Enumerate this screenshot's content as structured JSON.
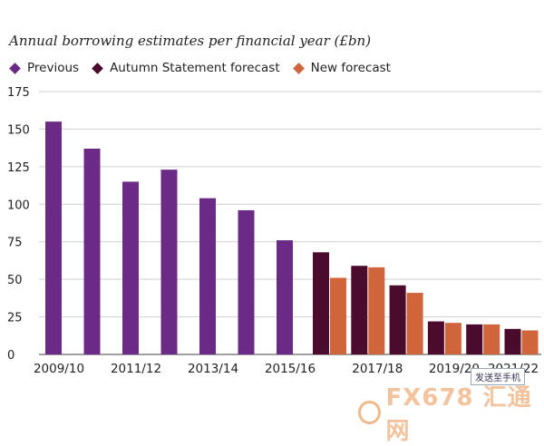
{
  "title": "Annual borrowing estimates per financial year (£bn)",
  "legend": [
    {
      "label": "Previous",
      "color": "#6a2a86"
    },
    {
      "label": "Autumn Statement forecast",
      "color": "#4a0b2c"
    },
    {
      "label": "New forecast",
      "color": "#d0643a"
    }
  ],
  "watermark": {
    "text": "FX678 汇通网",
    "badge": "发送至手机"
  },
  "chart_data": {
    "type": "bar",
    "title": "Annual borrowing estimates per financial year (£bn)",
    "ylim": [
      0,
      175
    ],
    "yticks": [
      0,
      25,
      50,
      75,
      100,
      125,
      150,
      175
    ],
    "grid": true,
    "legend_position": "top-left",
    "categories": [
      "2009/10",
      "2010/11",
      "2011/12",
      "2012/13",
      "2013/14",
      "2014/15",
      "2015/16",
      "2016/17",
      "2017/18",
      "2018/19",
      "2019/20",
      "2020/21",
      "2021/22"
    ],
    "xtick_labels": [
      "2009/10",
      "",
      "2011/12",
      "",
      "2013/14",
      "",
      "2015/16",
      "",
      "2017/18",
      "",
      "2019/20",
      "",
      "2021/22"
    ],
    "series": [
      {
        "name": "Previous",
        "color": "#6a2a86",
        "values": [
          155,
          137,
          115,
          123,
          104,
          96,
          76,
          null,
          null,
          null,
          null,
          null,
          null
        ]
      },
      {
        "name": "Autumn Statement forecast",
        "color": "#4a0b2c",
        "values": [
          null,
          null,
          null,
          null,
          null,
          null,
          null,
          68,
          59,
          46,
          22,
          20,
          17
        ]
      },
      {
        "name": "New forecast",
        "color": "#d0643a",
        "values": [
          null,
          null,
          null,
          null,
          null,
          null,
          null,
          51,
          58,
          41,
          21,
          20,
          16
        ]
      }
    ]
  }
}
